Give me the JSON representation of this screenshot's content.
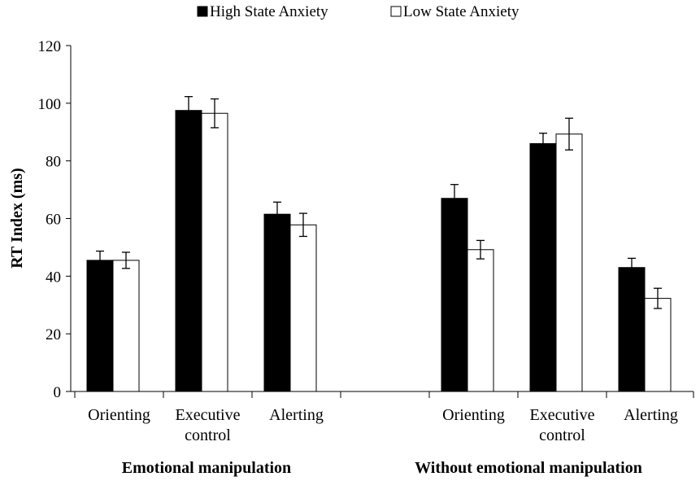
{
  "chart_data": {
    "type": "bar",
    "title": "",
    "ylabel": "RT Index (ms)",
    "ylim": [
      0,
      120
    ],
    "yticks": [
      0,
      20,
      40,
      60,
      80,
      100,
      120
    ],
    "ytick_labels": [
      "0",
      "20",
      "40",
      "60",
      "80",
      "100",
      "120"
    ],
    "legend_position": "top-center",
    "groups": [
      {
        "label": "Emotional manipulation",
        "categories": [
          {
            "lines": [
              "Orienting"
            ]
          },
          {
            "lines": [
              "Executive",
              "control"
            ]
          },
          {
            "lines": [
              "Alerting"
            ]
          }
        ]
      },
      {
        "label": "Without emotional manipulation",
        "categories": [
          {
            "lines": [
              "Orienting"
            ]
          },
          {
            "lines": [
              "Executive",
              "control"
            ]
          },
          {
            "lines": [
              "Alerting"
            ]
          }
        ]
      }
    ],
    "series": [
      {
        "name": "High State Anxiety",
        "color": "#000000",
        "values": [
          45.5,
          97.5,
          61.5,
          67,
          86,
          43
        ],
        "errors": [
          3.2,
          4.8,
          4.2,
          4.8,
          3.6,
          3.2
        ]
      },
      {
        "name": "Low State Anxiety",
        "color": "#ffffff",
        "values": [
          45.5,
          96.5,
          57.8,
          49.2,
          89.3,
          32.3
        ],
        "errors": [
          2.8,
          5.0,
          4.0,
          3.2,
          5.5,
          3.5
        ]
      }
    ]
  }
}
